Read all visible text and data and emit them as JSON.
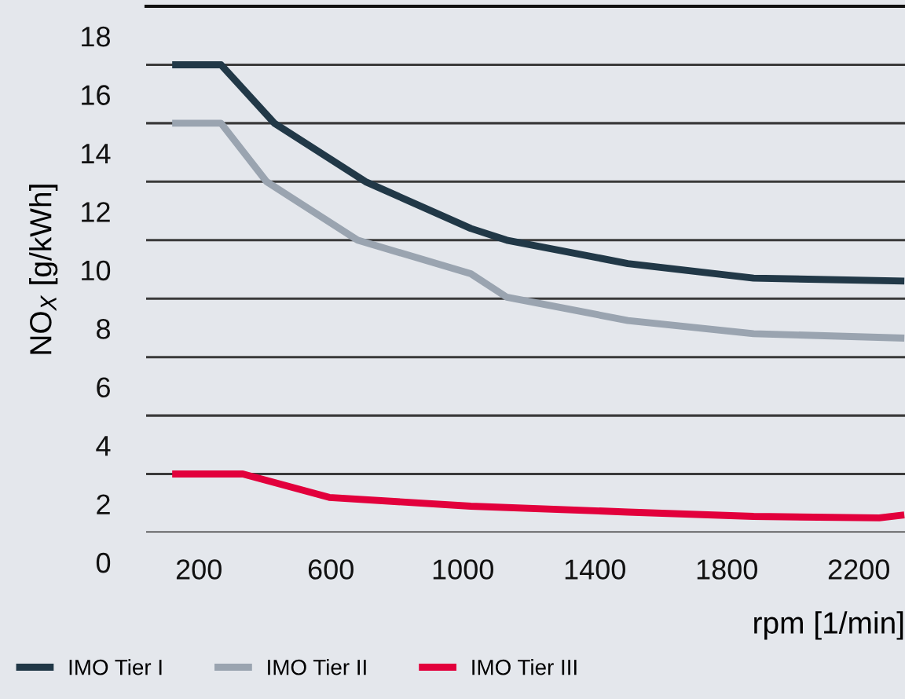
{
  "chart_data": {
    "type": "line",
    "xlabel": "rpm [1/min]",
    "ylabel": "NO$_{X}$ [g/kWh]",
    "xlim": [
      40,
      2340
    ],
    "ylim": [
      0,
      18
    ],
    "xticks": [
      200,
      600,
      1000,
      1400,
      1800,
      2200
    ],
    "yticks": [
      0,
      2,
      4,
      6,
      8,
      10,
      12,
      14,
      16,
      18
    ],
    "grid": "y",
    "legend": "bottom",
    "line_style": "solid",
    "marker": "none",
    "series": [
      {
        "name": "IMO Tier I",
        "color": "#213847",
        "x": [
          119,
          267,
          429,
          705,
          1024,
          1133,
          1500,
          1881,
          2338
        ],
        "values": [
          16,
          16,
          14,
          12,
          10.4,
          10,
          9.2,
          8.7,
          8.6
        ]
      },
      {
        "name": "IMO Tier II",
        "color": "#9aa4b0",
        "x": [
          119,
          267,
          405,
          681,
          1024,
          1133,
          1500,
          1881,
          2338
        ],
        "values": [
          14,
          14,
          12,
          10,
          8.85,
          8.05,
          7.25,
          6.8,
          6.65
        ]
      },
      {
        "name": "IMO Tier III",
        "color": "#e2003c",
        "x": [
          119,
          333,
          595,
          1024,
          1500,
          1881,
          2262,
          2338
        ],
        "values": [
          2,
          2,
          1.2,
          0.9,
          0.7,
          0.55,
          0.5,
          0.6
        ]
      }
    ]
  }
}
